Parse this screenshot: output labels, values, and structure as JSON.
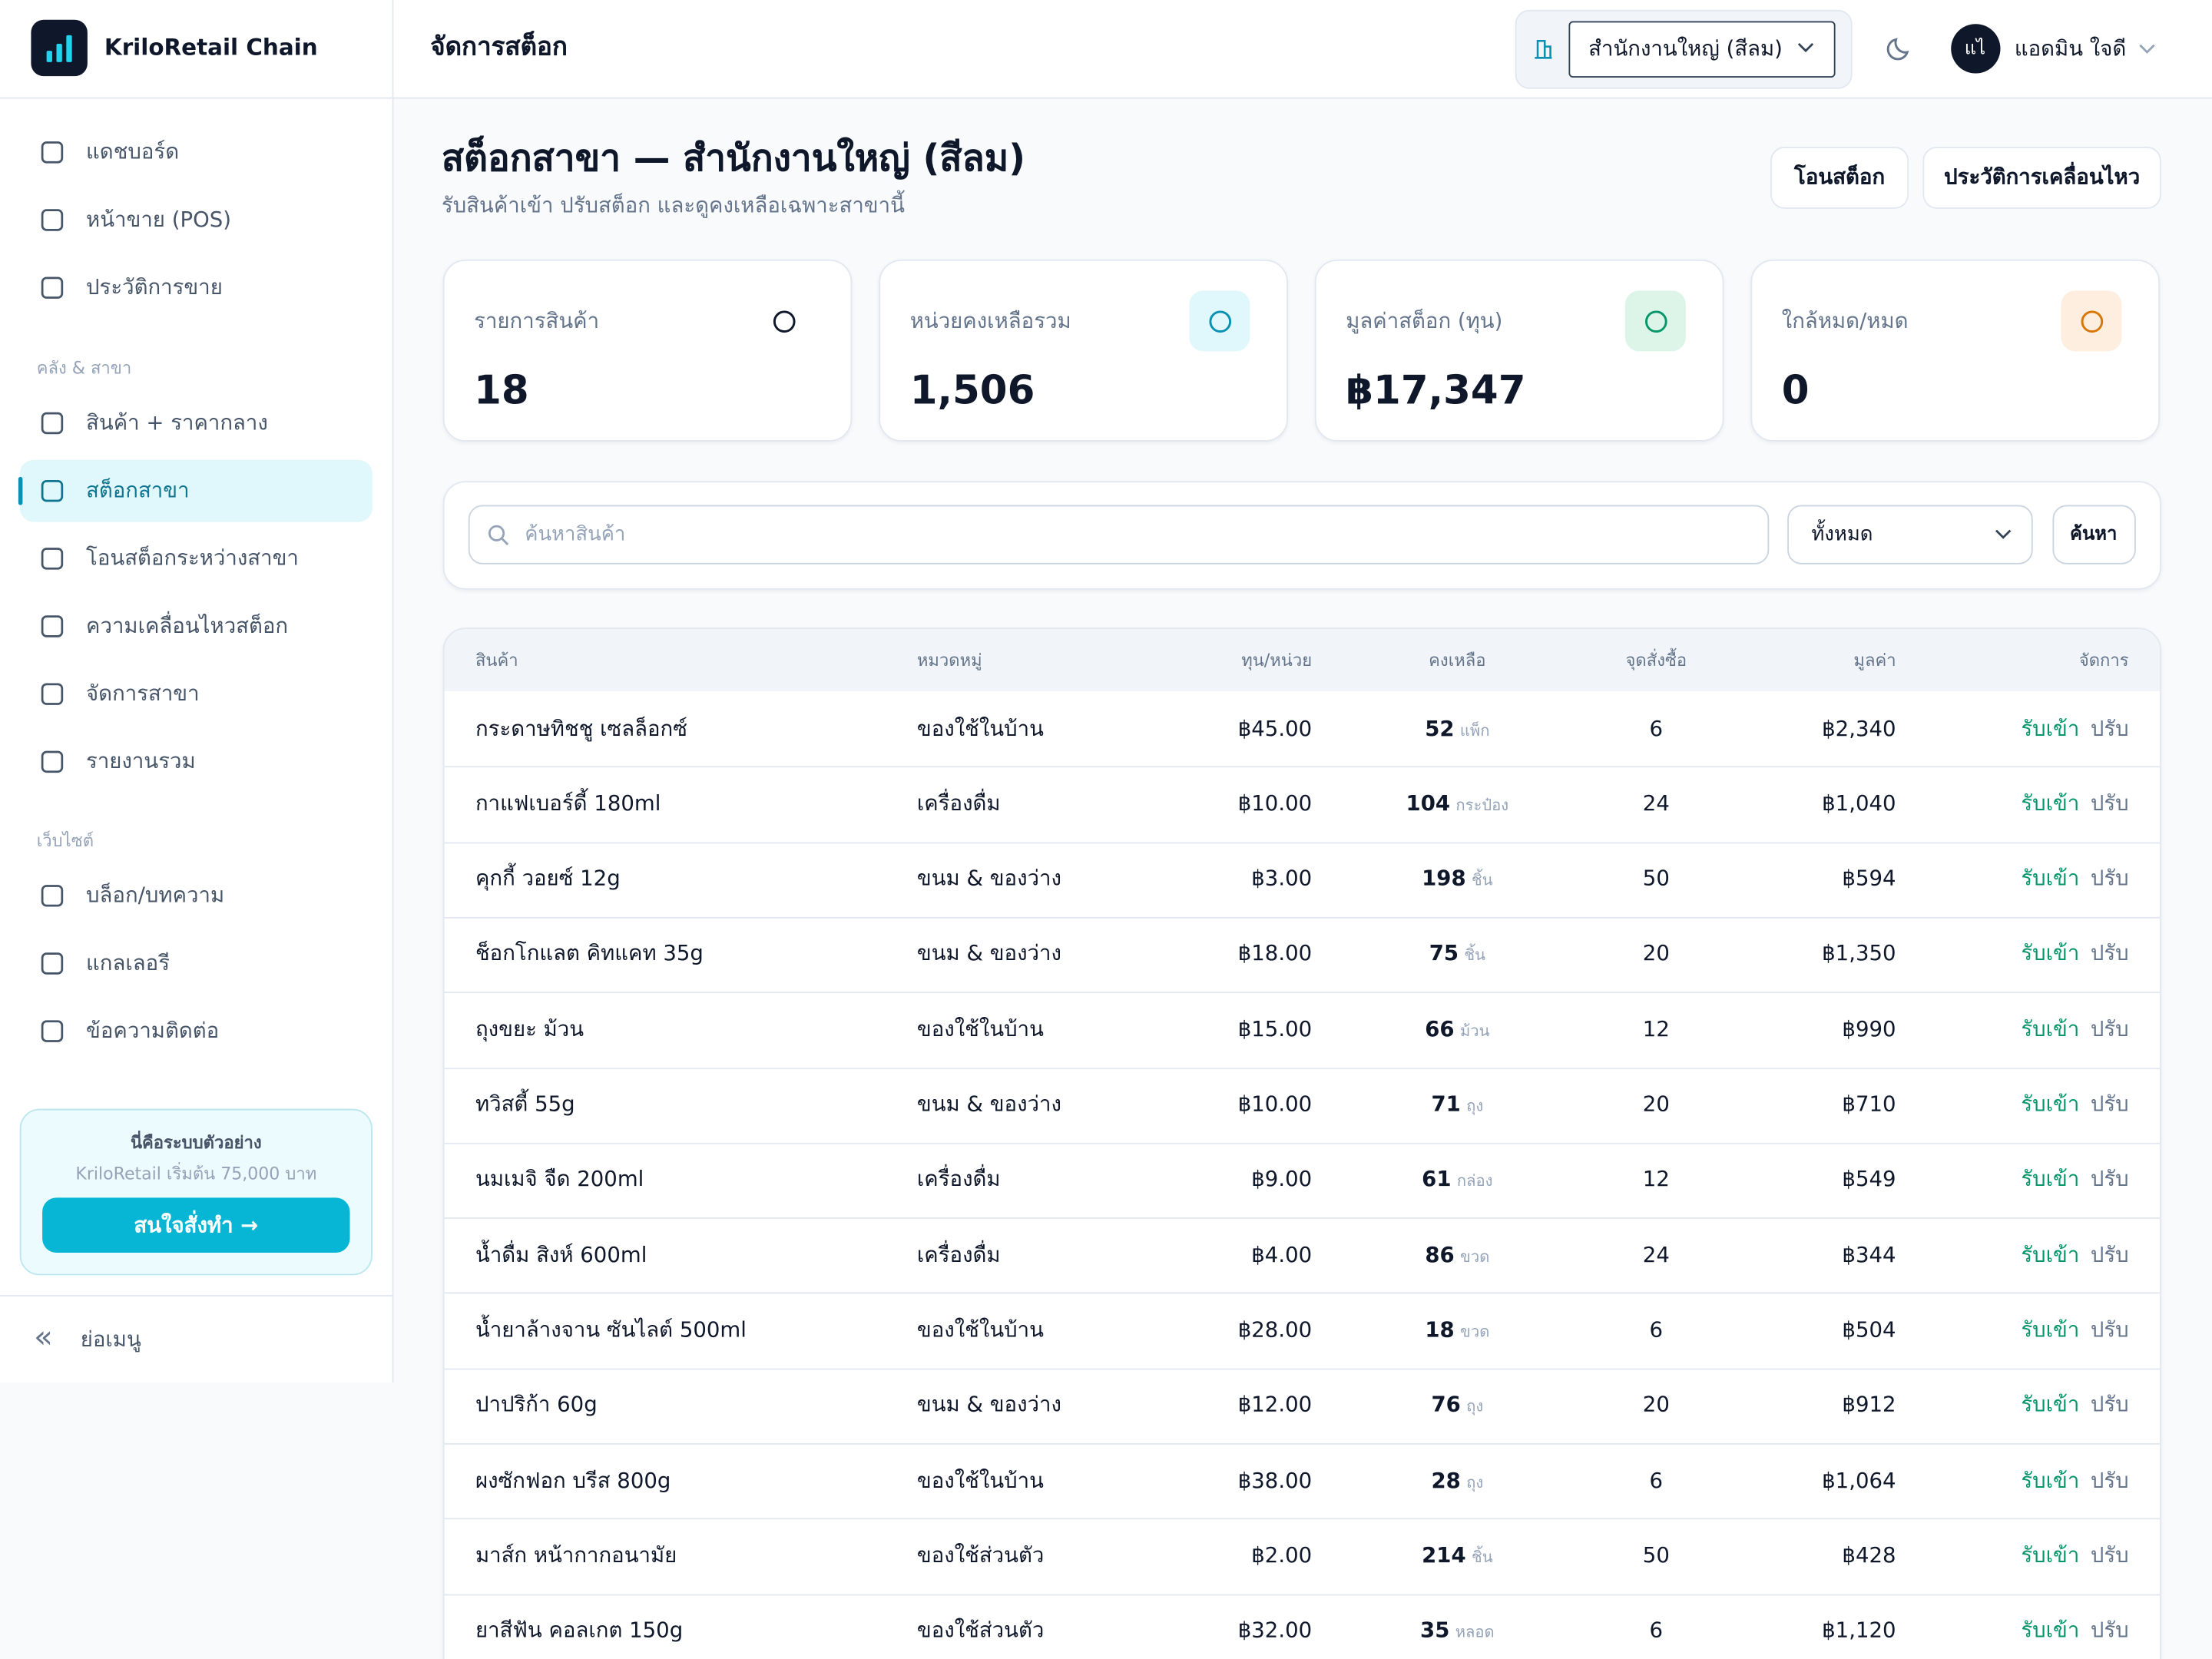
{
  "sidebar": {
    "brand": "KriloRetail Chain",
    "nav_main": [
      {
        "label": "แดชบอร์ด"
      },
      {
        "label": "หน้าขาย (POS)"
      },
      {
        "label": "ประวัติการขาย"
      }
    ],
    "sections": [
      {
        "heading": "คลัง & สาขา",
        "items": [
          {
            "label": "สินค้า + ราคากลาง"
          },
          {
            "label": "สต็อกสาขา",
            "active": true
          },
          {
            "label": "โอนสต็อกระหว่างสาขา"
          },
          {
            "label": "ความเคลื่อนไหวสต็อก"
          },
          {
            "label": "จัดการสาขา"
          },
          {
            "label": "รายงานรวม"
          }
        ]
      },
      {
        "heading": "เว็บไซต์",
        "items": [
          {
            "label": "บล็อก/บทความ"
          },
          {
            "label": "แกลเลอรี"
          },
          {
            "label": "ข้อความติดต่อ"
          }
        ]
      }
    ],
    "promo": {
      "title": "นี่คือระบบตัวอย่าง",
      "text": "KriloRetail เริ่มต้น 75,000 บาท",
      "button": "สนใจสั่งทำ →"
    },
    "collapse": "ย่อเมนู"
  },
  "header": {
    "title": "จัดการสต็อก",
    "branch": "สำนักงานใหญ่ (สีลม)",
    "avatar": "แไ",
    "user": "แอดมิน ใจดี"
  },
  "page": {
    "title": "สต็อกสาขา — สำนักงานใหญ่ (สีลม)",
    "subtitle": "รับสินค้าเข้า ปรับสต็อก และดูคงเหลือเฉพาะสาขานี้",
    "buttons": [
      "โอนสต็อก",
      "ประวัติการเคลื่อนไหว"
    ]
  },
  "stats": [
    {
      "label": "รายการสินค้า",
      "value": "18",
      "color": "#ffffff",
      "stroke": "#0f172a"
    },
    {
      "label": "หน่วยคงเหลือรวม",
      "value": "1,506",
      "color": "#e0f7fb",
      "stroke": "#0891b2"
    },
    {
      "label": "มูลค่าสต็อก (ทุน)",
      "value": "฿17,347",
      "color": "#dcf5e8",
      "stroke": "#059669"
    },
    {
      "label": "ใกล้หมด/หมด",
      "value": "0",
      "color": "#fdeee0",
      "stroke": "#d97706"
    }
  ],
  "filter": {
    "search_placeholder": "ค้นหาสินค้า",
    "category": "ทั้งหมด",
    "button": "ค้นหา"
  },
  "table": {
    "columns": [
      "สินค้า",
      "หมวดหมู่",
      "ทุน/หน่วย",
      "คงเหลือ",
      "จุดสั่งซื้อ",
      "มูลค่า",
      "จัดการ"
    ],
    "actions": [
      "รับเข้า",
      "ปรับ"
    ],
    "rows": [
      {
        "name": "กระดาษทิชชู เซลล็อกซ์",
        "category": "ของใช้ในบ้าน",
        "cost": "฿45.00",
        "qty": 52,
        "unit": "แพ็ก",
        "reorder": 6,
        "value": "฿2,340"
      },
      {
        "name": "กาแฟเบอร์ดี้ 180ml",
        "category": "เครื่องดื่ม",
        "cost": "฿10.00",
        "qty": 104,
        "unit": "กระป๋อง",
        "reorder": 24,
        "value": "฿1,040"
      },
      {
        "name": "คุกกี้ วอยซ์ 12g",
        "category": "ขนม & ของว่าง",
        "cost": "฿3.00",
        "qty": 198,
        "unit": "ชิ้น",
        "reorder": 50,
        "value": "฿594"
      },
      {
        "name": "ช็อกโกแลต คิทแคท 35g",
        "category": "ขนม & ของว่าง",
        "cost": "฿18.00",
        "qty": 75,
        "unit": "ชิ้น",
        "reorder": 20,
        "value": "฿1,350"
      },
      {
        "name": "ถุงขยะ ม้วน",
        "category": "ของใช้ในบ้าน",
        "cost": "฿15.00",
        "qty": 66,
        "unit": "ม้วน",
        "reorder": 12,
        "value": "฿990"
      },
      {
        "name": "ทวิสตี้ 55g",
        "category": "ขนม & ของว่าง",
        "cost": "฿10.00",
        "qty": 71,
        "unit": "ถุง",
        "reorder": 20,
        "value": "฿710"
      },
      {
        "name": "นมเมจิ จืด 200ml",
        "category": "เครื่องดื่ม",
        "cost": "฿9.00",
        "qty": 61,
        "unit": "กล่อง",
        "reorder": 12,
        "value": "฿549"
      },
      {
        "name": "น้ำดื่ม สิงห์ 600ml",
        "category": "เครื่องดื่ม",
        "cost": "฿4.00",
        "qty": 86,
        "unit": "ขวด",
        "reorder": 24,
        "value": "฿344"
      },
      {
        "name": "น้ำยาล้างจาน ซันไลต์ 500ml",
        "category": "ของใช้ในบ้าน",
        "cost": "฿28.00",
        "qty": 18,
        "unit": "ขวด",
        "reorder": 6,
        "value": "฿504"
      },
      {
        "name": "ปาปริก้า 60g",
        "category": "ขนม & ของว่าง",
        "cost": "฿12.00",
        "qty": 76,
        "unit": "ถุง",
        "reorder": 20,
        "value": "฿912"
      },
      {
        "name": "ผงซักฟอก บรีส 800g",
        "category": "ของใช้ในบ้าน",
        "cost": "฿38.00",
        "qty": 28,
        "unit": "ถุง",
        "reorder": 6,
        "value": "฿1,064"
      },
      {
        "name": "มาส์ก หน้ากากอนามัย",
        "category": "ของใช้ส่วนตัว",
        "cost": "฿2.00",
        "qty": 214,
        "unit": "ชิ้น",
        "reorder": 50,
        "value": "฿428"
      },
      {
        "name": "ยาสีฟัน คอลเกต 150g",
        "category": "ของใช้ส่วนตัว",
        "cost": "฿32.00",
        "qty": 35,
        "unit": "หลอด",
        "reorder": 6,
        "value": "฿1,120"
      }
    ]
  }
}
